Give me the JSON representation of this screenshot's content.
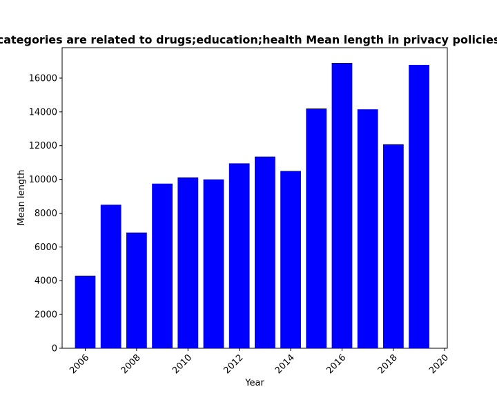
{
  "chart_data": {
    "type": "bar",
    "title": "categories are related to drugs;education;health Mean length in privacy policies",
    "xlabel": "Year",
    "ylabel": "Mean length",
    "x": [
      2006,
      2007,
      2008,
      2009,
      2010,
      2011,
      2012,
      2013,
      2014,
      2015,
      2016,
      2017,
      2018,
      2019
    ],
    "values": [
      4300,
      8500,
      6850,
      9750,
      10120,
      10000,
      10950,
      11350,
      10500,
      14200,
      16900,
      14150,
      12080,
      16780
    ],
    "xticks": [
      2006,
      2008,
      2010,
      2012,
      2014,
      2016,
      2018,
      2020
    ],
    "yticks": [
      0,
      2000,
      4000,
      6000,
      8000,
      10000,
      12000,
      14000,
      16000
    ],
    "xlim": [
      2005.1,
      2020.1
    ],
    "ylim": [
      0,
      17800
    ],
    "bar_color": "#0000ff",
    "grid": false,
    "legend": "none"
  }
}
